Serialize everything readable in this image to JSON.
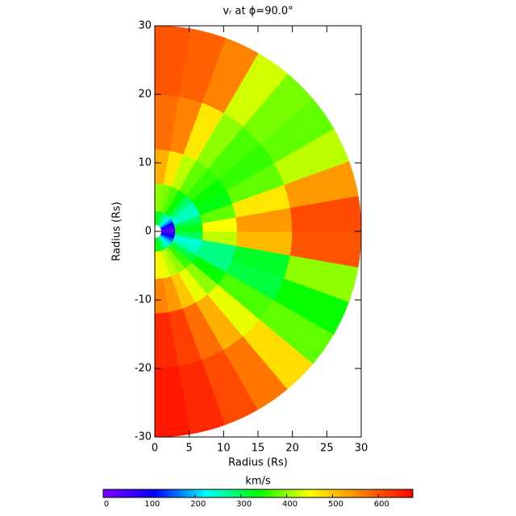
{
  "chart_data": {
    "type": "polar-heatmap",
    "title": "vᵣ at ϕ=90.0°",
    "x_label": "Radius (Rs)",
    "y_label": "Radius (Rs)",
    "xlim": [
      0,
      30
    ],
    "xticks": [
      0,
      5,
      10,
      15,
      20,
      25,
      30
    ],
    "ylim": [
      -30,
      30
    ],
    "yticks": [
      -30,
      -20,
      -10,
      0,
      10,
      20,
      30
    ],
    "r_edges": [
      1,
      3,
      7,
      12,
      20,
      30
    ],
    "lat_edges": [
      -90,
      -80,
      -70,
      -60,
      -50,
      -40,
      -30,
      -20,
      -10,
      0,
      10,
      20,
      30,
      40,
      50,
      60,
      70,
      80,
      90
    ],
    "values": [
      [
        350,
        330,
        300,
        270,
        240,
        200,
        150,
        100,
        60,
        40,
        60,
        120,
        180,
        220,
        260,
        290,
        320,
        330
      ],
      [
        460,
        440,
        420,
        400,
        360,
        310,
        260,
        240,
        300,
        330,
        300,
        250,
        260,
        300,
        340,
        370,
        390,
        400
      ],
      [
        560,
        540,
        500,
        440,
        400,
        340,
        280,
        280,
        420,
        450,
        380,
        330,
        340,
        360,
        380,
        420,
        470,
        520
      ],
      [
        640,
        620,
        580,
        520,
        440,
        370,
        310,
        320,
        510,
        540,
        470,
        380,
        360,
        370,
        400,
        470,
        560,
        580
      ],
      [
        655,
        640,
        610,
        570,
        480,
        380,
        340,
        400,
        600,
        610,
        540,
        420,
        380,
        390,
        430,
        560,
        590,
        600
      ]
    ],
    "colormap": [
      "#7f00ff",
      "#0000ff",
      "#00ffff",
      "#00ff00",
      "#ffff00",
      "#ff8000",
      "#ff0000"
    ],
    "clim": [
      0,
      675
    ],
    "colorbar_label": "km/s",
    "colorbar_ticks": [
      0,
      100,
      200,
      300,
      400,
      500,
      600
    ]
  }
}
